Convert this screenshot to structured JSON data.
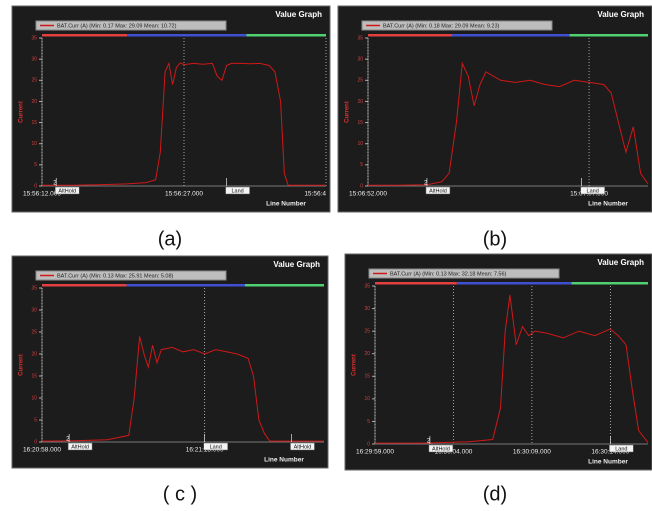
{
  "chart_data": [
    {
      "type": "line",
      "title": "Value Graph",
      "caption": "(a)",
      "ylabel": "Current",
      "xlabel": "Line Number",
      "x": [
        0,
        3,
        6,
        9,
        11,
        12,
        12.5,
        13,
        13.4,
        13.8,
        14.2,
        14.6,
        15,
        16,
        17,
        18,
        18.5,
        19,
        19.5,
        20,
        21,
        22,
        23,
        24,
        24.6,
        25.2,
        25.6,
        26,
        28,
        30
      ],
      "series": [
        {
          "name": "BAT.Curr (A) (Min: 0.17 Max: 29.09 Mean: 10.72)",
          "color": "#d01818",
          "values": [
            0.2,
            0.2,
            0.3,
            0.5,
            0.8,
            1.5,
            8,
            27,
            29,
            24,
            28,
            29.1,
            28.7,
            29,
            28.8,
            29,
            26,
            25,
            28.5,
            29,
            29,
            28.9,
            29,
            28.5,
            27,
            20,
            3,
            0.2,
            0.2,
            0.2
          ]
        }
      ],
      "xlim": [
        0,
        30
      ],
      "xticks": [
        {
          "value": 0,
          "label": "15:56:12.000"
        },
        {
          "value": 15,
          "label": "15:56:27.000"
        },
        {
          "value": 30,
          "label": "15:56:4"
        }
      ],
      "ylim": [
        0,
        35
      ],
      "yticks": [
        0,
        5,
        10,
        15,
        20,
        25,
        30,
        35
      ],
      "annotations": [
        {
          "x": 1.5,
          "marker": "2",
          "text": "AltHold"
        },
        {
          "x": 19.5,
          "text": "Land"
        }
      ]
    },
    {
      "type": "line",
      "title": "Value Graph",
      "caption": "(b)",
      "ylabel": "Current",
      "xlabel": "Line Number",
      "x": [
        0,
        2,
        4,
        5,
        5.5,
        6,
        6.4,
        6.8,
        7.2,
        7.6,
        8,
        9,
        10,
        11,
        12,
        13,
        14,
        15,
        16,
        16.5,
        17,
        17.5,
        18,
        18.5,
        19
      ],
      "series": [
        {
          "name": "BAT.Curr (A) (Min: 0.18 Max: 29.09 Mean: 9.23)",
          "color": "#d01818",
          "values": [
            0.2,
            0.2,
            0.3,
            1,
            3,
            15,
            29,
            26,
            19,
            24,
            27,
            25,
            24.5,
            25,
            24,
            23.5,
            25,
            24.5,
            24,
            22,
            15,
            8,
            14,
            3,
            0.5
          ]
        }
      ],
      "xlim": [
        0,
        19
      ],
      "xticks": [
        {
          "value": 0,
          "label": "15:06:52.000"
        },
        {
          "value": 15,
          "label": "15:07:07.000"
        }
      ],
      "ylim": [
        0,
        35
      ],
      "yticks": [
        0,
        5,
        10,
        15,
        20,
        25,
        30,
        35
      ],
      "annotations": [
        {
          "x": 4,
          "marker": "2",
          "text": "AltHold"
        },
        {
          "x": 14.5,
          "text": "Land"
        }
      ]
    },
    {
      "type": "line",
      "title": "Value Graph",
      "caption": "( c )",
      "ylabel": "Current",
      "xlabel": "Line Number",
      "x": [
        0,
        3,
        6,
        8,
        8.5,
        9,
        9.4,
        9.8,
        10.2,
        10.6,
        11,
        12,
        13,
        14,
        15,
        16,
        17,
        18,
        19,
        19.5,
        20,
        20.5,
        21,
        23,
        26
      ],
      "series": [
        {
          "name": "BAT.Curr (A) (Min: 0.13 Max: 25.91 Mean: 5.08)",
          "color": "#d01818",
          "values": [
            0.2,
            0.3,
            0.5,
            1.5,
            10,
            24,
            20,
            17,
            22,
            18,
            21,
            21.5,
            20.5,
            21,
            20,
            21,
            20.5,
            20,
            19,
            15,
            5,
            2,
            0.2,
            0.2,
            0.2
          ]
        }
      ],
      "xlim": [
        0,
        26
      ],
      "xticks": [
        {
          "value": 0,
          "label": "16:20:58.000"
        },
        {
          "value": 15,
          "label": "16:21:13.000"
        }
      ],
      "ylim": [
        0,
        35
      ],
      "yticks": [
        0,
        5,
        10,
        15,
        20,
        25,
        30,
        35
      ],
      "annotations": [
        {
          "x": 2.5,
          "marker": "2",
          "text": "AltHold"
        },
        {
          "x": 15,
          "text": "Land"
        },
        {
          "x": 23,
          "text": "AltHold"
        }
      ]
    },
    {
      "type": "line",
      "title": "Value Graph",
      "caption": "(d)",
      "ylabel": "Current",
      "xlabel": "Line Number",
      "x": [
        0,
        3,
        6,
        7.5,
        8,
        8.3,
        8.6,
        9,
        9.4,
        9.8,
        10.2,
        11,
        12,
        13,
        14,
        15,
        15.5,
        16,
        16.4,
        16.8,
        17.4
      ],
      "series": [
        {
          "name": "BAT.Curr (A) (Min: 0.13 Max: 32.18 Mean: 7.56)",
          "color": "#d01818",
          "values": [
            0.2,
            0.2,
            0.5,
            1,
            8,
            25,
            33,
            22,
            26,
            24,
            25,
            24.5,
            23.5,
            25,
            24,
            25.5,
            24,
            22,
            12,
            3,
            0.3
          ]
        }
      ],
      "xlim": [
        0,
        17.4
      ],
      "xticks": [
        {
          "value": 0,
          "label": "16:29:59.000"
        },
        {
          "value": 5,
          "label": "16:30:04.000"
        },
        {
          "value": 10,
          "label": "16:30:09.000"
        },
        {
          "value": 15,
          "label": "16:30:14.000"
        }
      ],
      "ylim": [
        0,
        35
      ],
      "yticks": [
        0,
        5,
        10,
        15,
        20,
        25,
        30,
        35
      ],
      "annotations": [
        {
          "x": 3.5,
          "marker": "2",
          "text": "AltHold"
        },
        {
          "x": 15,
          "text": "Land"
        }
      ]
    }
  ]
}
